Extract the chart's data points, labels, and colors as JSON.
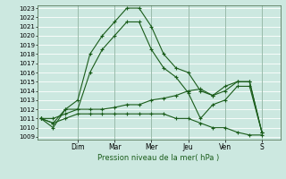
{
  "xlabel": "Pression niveau de la mer( hPa )",
  "ylim": [
    1009,
    1023
  ],
  "yticks": [
    1009,
    1010,
    1011,
    1012,
    1013,
    1014,
    1015,
    1016,
    1017,
    1018,
    1019,
    1020,
    1021,
    1022,
    1023
  ],
  "day_labels": [
    "Dim",
    "Mar",
    "Mer",
    "Jeu",
    "Ven",
    "S"
  ],
  "day_positions": [
    3,
    6,
    9,
    12,
    15,
    18
  ],
  "background_color": "#cce8e0",
  "grid_color": "#ffffff",
  "line_color": "#1a5c1a",
  "series": [
    {
      "x": [
        0,
        1,
        2,
        3,
        4,
        5,
        6,
        7,
        8,
        9,
        10,
        11,
        12,
        13,
        14,
        15,
        16,
        17,
        18
      ],
      "y": [
        1011,
        1010.5,
        1012,
        1013,
        1018,
        1020,
        1021.5,
        1023,
        1023,
        1021,
        1018,
        1016.5,
        1016,
        1014,
        1013.5,
        1014,
        1015,
        1015,
        1009.5
      ]
    },
    {
      "x": [
        0,
        1,
        2,
        3,
        4,
        5,
        6,
        7,
        8,
        9,
        10,
        11,
        12,
        13,
        14,
        15,
        16,
        17,
        18
      ],
      "y": [
        1011,
        1010,
        1012,
        1012,
        1016,
        1018.5,
        1020,
        1021.5,
        1021.5,
        1018.5,
        1016.5,
        1015.5,
        1013.8,
        1011,
        1012.5,
        1013,
        1014.5,
        1014.5,
        1009.5
      ]
    },
    {
      "x": [
        0,
        1,
        2,
        3,
        4,
        5,
        6,
        7,
        8,
        9,
        10,
        11,
        12,
        13,
        14,
        15,
        16,
        17,
        18
      ],
      "y": [
        1011,
        1011,
        1011.5,
        1012,
        1012,
        1012,
        1012.2,
        1012.5,
        1012.5,
        1013,
        1013.2,
        1013.5,
        1014,
        1014.2,
        1013.5,
        1014.5,
        1015,
        1015,
        1009.5
      ]
    },
    {
      "x": [
        0,
        1,
        2,
        3,
        4,
        5,
        6,
        7,
        8,
        9,
        10,
        11,
        12,
        13,
        14,
        15,
        16,
        17,
        18
      ],
      "y": [
        1011,
        1010.5,
        1011,
        1011.5,
        1011.5,
        1011.5,
        1011.5,
        1011.5,
        1011.5,
        1011.5,
        1011.5,
        1011,
        1011,
        1010.5,
        1010,
        1010,
        1009.5,
        1009.2,
        1009.2
      ]
    }
  ]
}
